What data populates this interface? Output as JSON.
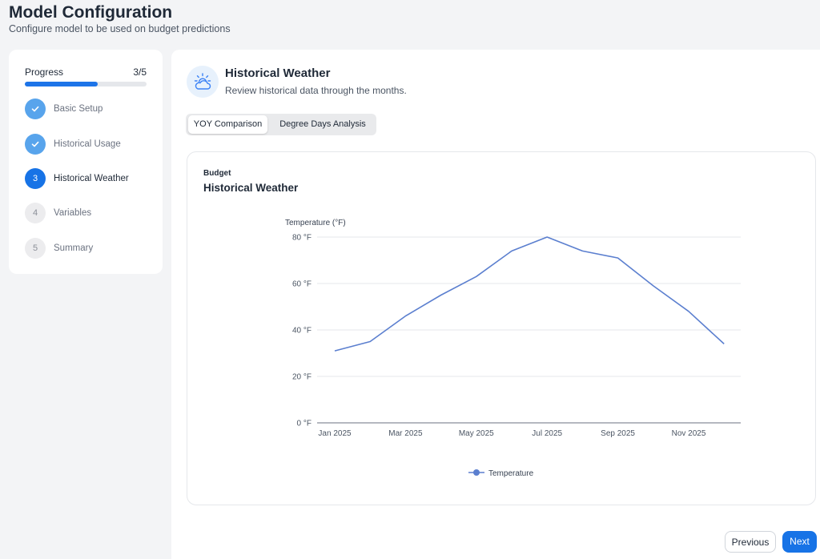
{
  "header": {
    "title": "Model Configuration",
    "subtitle": "Configure model to be used on budget predictions"
  },
  "sidebar": {
    "progress_label": "Progress",
    "progress_count": "3/5",
    "progress_fraction": 0.6,
    "steps": [
      {
        "marker": "",
        "label": "Basic Setup",
        "state": "done"
      },
      {
        "marker": "",
        "label": "Historical Usage",
        "state": "done"
      },
      {
        "marker": "3",
        "label": "Historical Weather",
        "state": "active"
      },
      {
        "marker": "4",
        "label": "Variables",
        "state": "pending"
      },
      {
        "marker": "5",
        "label": "Summary",
        "state": "pending"
      }
    ]
  },
  "section": {
    "icon": "cloud-sun-icon",
    "title": "Historical Weather",
    "subtitle": "Review historical data through the months."
  },
  "tabs": [
    {
      "label": "YOY Comparison",
      "active": true
    },
    {
      "label": "Degree Days Analysis",
      "active": false
    }
  ],
  "card": {
    "eyebrow": "Budget",
    "title": "Historical Weather"
  },
  "colors": {
    "accent": "#1773e6",
    "series": "#5b7fcf"
  },
  "chart_data": {
    "type": "line",
    "ylabel": "Temperature (°F)",
    "ylim": [
      0,
      80
    ],
    "yticks": [
      0,
      20,
      40,
      60,
      80
    ],
    "ytick_labels": [
      "0 °F",
      "20 °F",
      "40 °F",
      "60 °F",
      "80 °F"
    ],
    "x": [
      "Jan 2025",
      "Feb 2025",
      "Mar 2025",
      "Apr 2025",
      "May 2025",
      "Jun 2025",
      "Jul 2025",
      "Aug 2025",
      "Sep 2025",
      "Oct 2025",
      "Nov 2025",
      "Dec 2025"
    ],
    "xtick_labels": [
      "Jan 2025",
      "Mar 2025",
      "May 2025",
      "Jul 2025",
      "Sep 2025",
      "Nov 2025"
    ],
    "series": [
      {
        "name": "Temperature",
        "values": [
          31,
          35,
          46,
          55,
          63,
          74,
          80,
          74,
          71,
          59,
          48,
          34
        ]
      }
    ],
    "grid": true,
    "legend": "bottom-center"
  },
  "footer": {
    "previous_label": "Previous",
    "next_label": "Next"
  }
}
